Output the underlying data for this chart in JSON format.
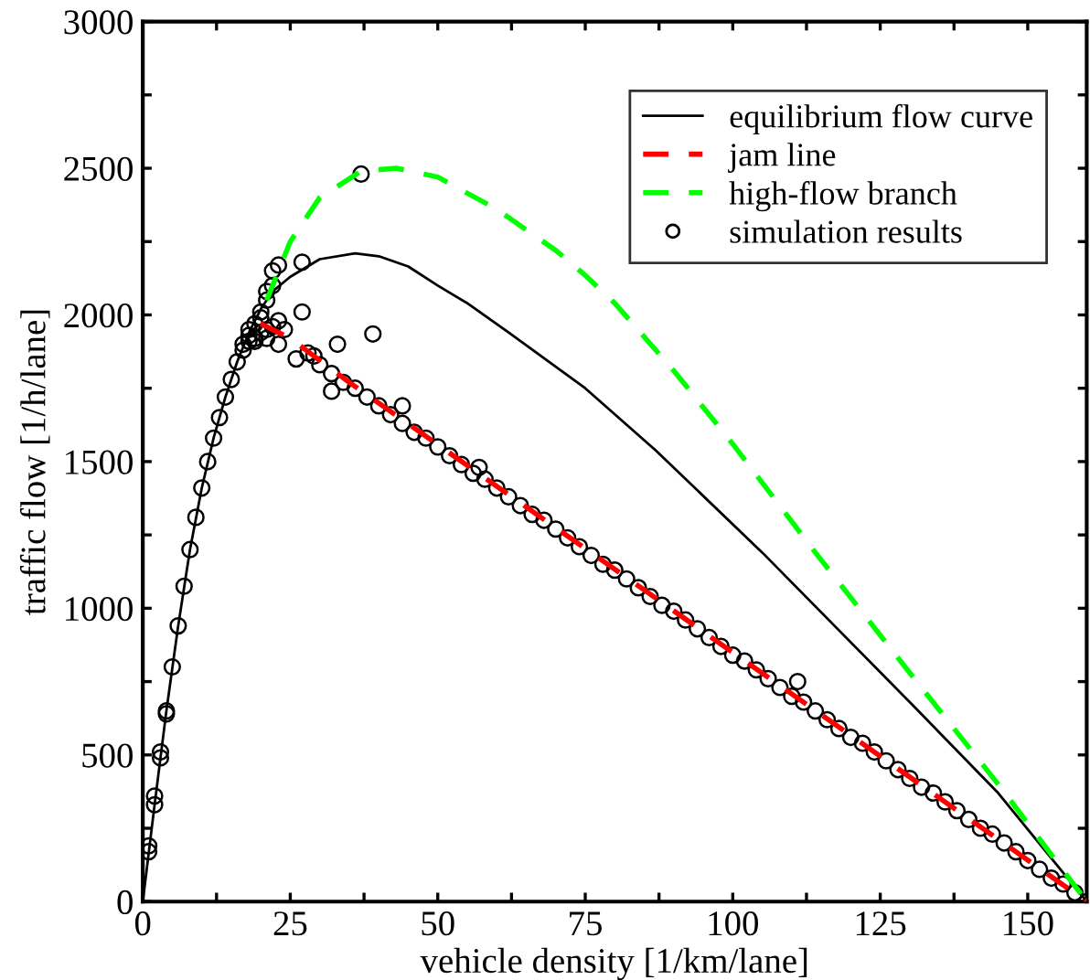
{
  "chart_data": {
    "type": "line",
    "xlabel": "vehicle density [1/km/lane]",
    "ylabel": "traffic flow [1/h/lane]",
    "xlim": [
      0,
      160
    ],
    "ylim": [
      0,
      3000
    ],
    "xticks": [
      0,
      {
        "value": 12.5,
        "label": null
      },
      25,
      {
        "value": 37.5,
        "label": null
      },
      50,
      {
        "value": 62.5,
        "label": null
      },
      75,
      {
        "value": 87.5,
        "label": null
      },
      100,
      {
        "value": 112.5,
        "label": null
      },
      125,
      {
        "value": 137.5,
        "label": null
      },
      150
    ],
    "yticks": [
      0,
      {
        "value": 250,
        "label": null
      },
      500,
      {
        "value": 750,
        "label": null
      },
      1000,
      {
        "value": 1250,
        "label": null
      },
      1500,
      {
        "value": 1750,
        "label": null
      },
      2000,
      {
        "value": 2250,
        "label": null
      },
      2500,
      {
        "value": 2750,
        "label": null
      },
      3000
    ],
    "grid": false,
    "legend": "top right",
    "series": [
      {
        "name": "equilibrium flow curve",
        "line_style": "solid",
        "marker": "none",
        "color": "#000000",
        "x": [
          0,
          2,
          4,
          6,
          8,
          10,
          12,
          14,
          16,
          18,
          20,
          22,
          25,
          30,
          36,
          40,
          45,
          50,
          55,
          62,
          75,
          87,
          105,
          130,
          145,
          160
        ],
        "values": [
          0,
          330,
          650,
          940,
          1200,
          1410,
          1580,
          1720,
          1840,
          1940,
          2020,
          2080,
          2130,
          2190,
          2210,
          2200,
          2165,
          2100,
          2040,
          1940,
          1750,
          1537,
          1190,
          680,
          370,
          0
        ]
      },
      {
        "name": "jam line",
        "line_style": "dashed",
        "marker": "none",
        "color": "#ff0000",
        "x": [
          20,
          25,
          35,
          160
        ],
        "values": [
          1970,
          1920,
          1770,
          0
        ]
      },
      {
        "name": "high-flow branch",
        "line_style": "dashed",
        "marker": "none",
        "color": "#00ff00",
        "x": [
          21,
          25,
          30,
          37,
          43,
          50,
          60,
          70,
          75,
          80,
          90,
          100,
          114,
          130,
          145,
          160
        ],
        "values": [
          2050,
          2250,
          2400,
          2490,
          2500,
          2470,
          2360,
          2220,
          2135,
          2040,
          1810,
          1560,
          1190,
          780,
          400,
          0
        ]
      },
      {
        "name": "simulation results",
        "type": "scatter",
        "marker": "circle",
        "color": "#000000",
        "x": [
          1,
          1,
          2,
          2,
          3,
          3,
          4,
          4,
          5,
          6,
          7,
          8,
          9,
          10,
          11,
          12,
          13,
          14,
          15,
          16,
          17,
          18,
          17,
          18,
          18,
          19,
          19,
          20,
          20,
          20,
          21,
          21,
          21,
          22,
          22,
          23,
          23,
          24,
          21,
          19,
          23,
          22,
          27,
          27,
          37,
          39,
          33,
          32,
          44,
          57,
          111,
          26,
          28,
          29,
          30,
          32,
          34,
          36,
          38,
          40,
          42,
          44,
          46,
          48,
          50,
          52,
          54,
          56,
          58,
          60,
          62,
          64,
          66,
          68,
          70,
          72,
          74,
          76,
          78,
          80,
          82,
          84,
          86,
          88,
          90,
          92,
          94,
          96,
          98,
          100,
          102,
          104,
          106,
          108,
          110,
          112,
          114,
          116,
          118,
          120,
          122,
          124,
          126,
          128,
          130,
          132,
          134,
          136,
          138,
          140,
          142,
          144,
          146,
          148,
          150,
          152,
          154,
          156,
          158,
          160
        ],
        "values": [
          170,
          190,
          330,
          360,
          490,
          510,
          640,
          650,
          800,
          940,
          1075,
          1200,
          1310,
          1410,
          1500,
          1580,
          1650,
          1720,
          1780,
          1840,
          1880,
          1910,
          1900,
          1930,
          1950,
          1920,
          1970,
          1940,
          1990,
          2010,
          1950,
          2050,
          2080,
          1960,
          2100,
          1980,
          1900,
          1950,
          1920,
          1910,
          2170,
          2150,
          2180,
          2010,
          2480,
          1935,
          1900,
          1740,
          1690,
          1480,
          750,
          1850,
          1870,
          1860,
          1830,
          1800,
          1770,
          1750,
          1720,
          1690,
          1660,
          1630,
          1600,
          1580,
          1550,
          1520,
          1490,
          1460,
          1440,
          1410,
          1380,
          1350,
          1320,
          1300,
          1270,
          1240,
          1210,
          1180,
          1150,
          1130,
          1100,
          1070,
          1040,
          1010,
          990,
          960,
          930,
          900,
          870,
          840,
          820,
          790,
          760,
          730,
          700,
          680,
          650,
          620,
          590,
          560,
          540,
          510,
          480,
          450,
          420,
          390,
          370,
          340,
          310,
          280,
          250,
          230,
          200,
          170,
          140,
          110,
          80,
          60,
          30,
          0
        ]
      }
    ]
  }
}
